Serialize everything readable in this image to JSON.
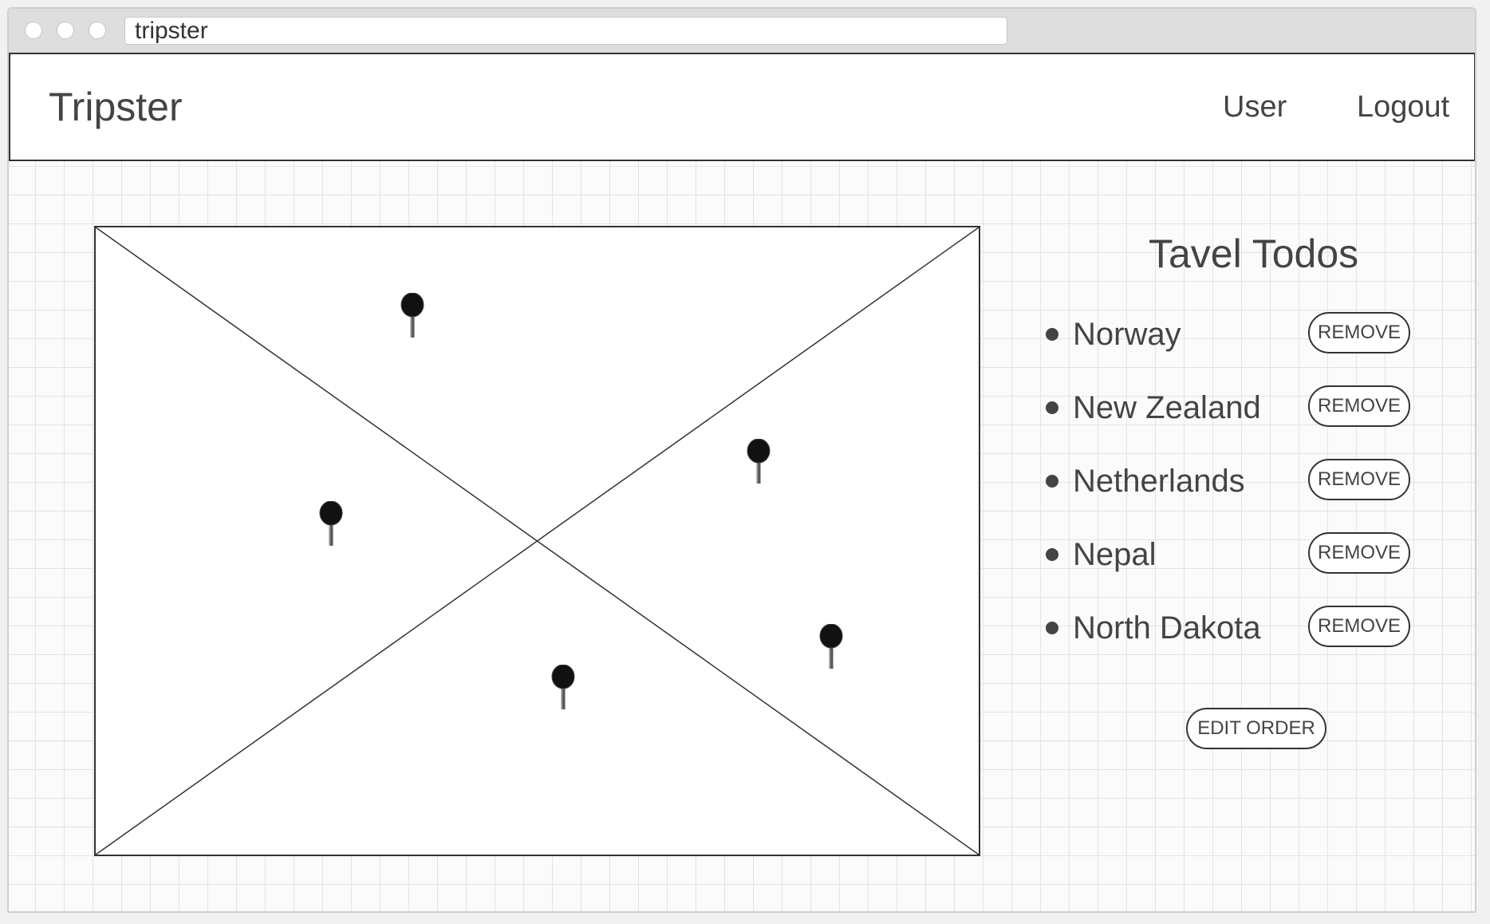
{
  "browser": {
    "url_text": "tripster"
  },
  "navbar": {
    "brand": "Tripster",
    "links": [
      {
        "label": "User"
      },
      {
        "label": "Logout"
      }
    ]
  },
  "map": {
    "pin_count": 5
  },
  "todos": {
    "title": "Tavel Todos",
    "items": [
      {
        "label": "Norway",
        "action": "REMOVE"
      },
      {
        "label": "New Zealand",
        "action": "REMOVE"
      },
      {
        "label": "Netherlands",
        "action": "REMOVE"
      },
      {
        "label": "Nepal",
        "action": "REMOVE"
      },
      {
        "label": "North Dakota",
        "action": "REMOVE"
      }
    ],
    "edit_order_label": "EDIT ORDER"
  }
}
